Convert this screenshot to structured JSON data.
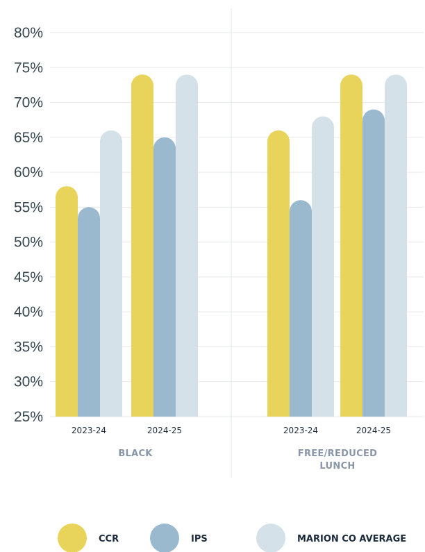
{
  "chart_data": {
    "type": "bar",
    "y_ticks": [
      "80%",
      "75%",
      "70%",
      "65%",
      "60%",
      "55%",
      "50%",
      "45%",
      "40%",
      "35%",
      "30%",
      "25%"
    ],
    "ylim": [
      25,
      80
    ],
    "groups": [
      {
        "label": "BLACK",
        "categories": [
          "2023-24",
          "2024-25"
        ],
        "series": [
          {
            "name": "CCR",
            "values": [
              58,
              74
            ]
          },
          {
            "name": "IPS",
            "values": [
              55,
              65
            ]
          },
          {
            "name": "MARION CO AVERAGE",
            "values": [
              66,
              74
            ]
          }
        ]
      },
      {
        "label": "FREE/REDUCED\nLUNCH",
        "categories": [
          "2023-24",
          "2024-25"
        ],
        "series": [
          {
            "name": "CCR",
            "values": [
              66,
              74
            ]
          },
          {
            "name": "IPS",
            "values": [
              56,
              69
            ]
          },
          {
            "name": "MARION CO AVERAGE",
            "values": [
              68,
              74
            ]
          }
        ]
      }
    ],
    "legend": [
      {
        "name": "CCR",
        "color": "#e8d45a"
      },
      {
        "name": "IPS",
        "color": "#9ab9cf"
      },
      {
        "name": "MARION CO AVERAGE",
        "color": "#d5e1e9"
      }
    ],
    "grid": true,
    "legend_position": "bottom"
  }
}
